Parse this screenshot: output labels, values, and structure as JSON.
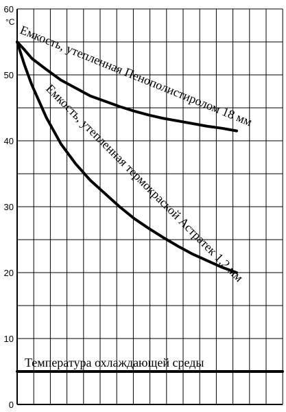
{
  "chart_data": {
    "type": "line",
    "title": "",
    "xlabel": "",
    "ylabel": "",
    "y_unit": "°C",
    "ylim": [
      0,
      60
    ],
    "y_ticks": [
      0,
      10,
      20,
      30,
      40,
      50,
      60
    ],
    "y_tick_labels": [
      "0",
      "10",
      "20",
      "30",
      "40",
      "50",
      "60"
    ],
    "grid": true,
    "colors": {
      "line": "#000000",
      "grid": "#000000",
      "background": "#ffffff"
    },
    "series": [
      {
        "name": "Емкость, утепленная Пенополистиролом 18 мм",
        "x": [
          0,
          0.5,
          1,
          2,
          3,
          4,
          5,
          6,
          7,
          8,
          9,
          10,
          11,
          12,
          13,
          14,
          15
        ],
        "values": [
          55.0,
          53.8,
          52.5,
          50.8,
          49.2,
          48.0,
          46.8,
          46.0,
          45.2,
          44.5,
          43.9,
          43.4,
          43.0,
          42.6,
          42.2,
          41.9,
          41.5
        ]
      },
      {
        "name": "Емкость, утепленная термокраской Астратек 1,2 мм",
        "x": [
          0,
          0.5,
          1,
          2,
          3,
          4,
          5,
          6,
          7,
          8,
          9,
          10,
          11,
          12,
          13,
          14,
          15
        ],
        "values": [
          55.0,
          51.5,
          48.5,
          43.5,
          39.5,
          36.5,
          34.0,
          32.0,
          30.0,
          28.2,
          26.7,
          25.3,
          24.0,
          22.8,
          21.8,
          20.8,
          20.0
        ]
      },
      {
        "name": "Температура охлаждающей среды",
        "x": [
          0,
          15
        ],
        "values": [
          5,
          5
        ]
      }
    ]
  }
}
